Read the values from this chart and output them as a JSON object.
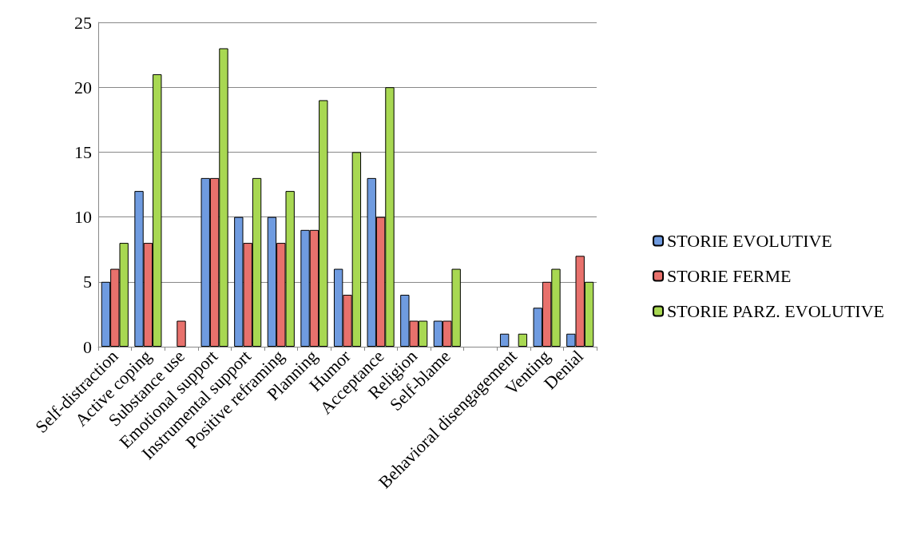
{
  "chart_data": {
    "type": "bar",
    "categories": [
      "Self-distraction",
      "Active coping",
      "Substance use",
      "Emotional support",
      "Instrumental support",
      "Positive reframing",
      "Planning",
      "Humor",
      "Acceptance",
      "Religion",
      "Self-blame",
      null,
      "Behavioral disengagement",
      "Venting",
      "Denial"
    ],
    "series": [
      {
        "name": "STORIE EVOLUTIVE",
        "color": "#6f9be0",
        "values": [
          5,
          12,
          0,
          13,
          10,
          10,
          9,
          6,
          13,
          4,
          2,
          null,
          1,
          3,
          1
        ]
      },
      {
        "name": "STORIE FERME",
        "color": "#e8716c",
        "values": [
          6,
          8,
          2,
          13,
          8,
          8,
          9,
          4,
          10,
          2,
          2,
          null,
          0,
          5,
          7
        ]
      },
      {
        "name": "STORIE PARZ. EVOLUTIVE",
        "color": "#a8d852",
        "values": [
          8,
          21,
          0,
          23,
          13,
          12,
          19,
          15,
          20,
          2,
          6,
          null,
          1,
          6,
          5
        ]
      }
    ],
    "ylim": [
      0,
      25
    ],
    "yticks": [
      0,
      5,
      10,
      15,
      20,
      25
    ],
    "grid": "y",
    "legend": "right"
  }
}
